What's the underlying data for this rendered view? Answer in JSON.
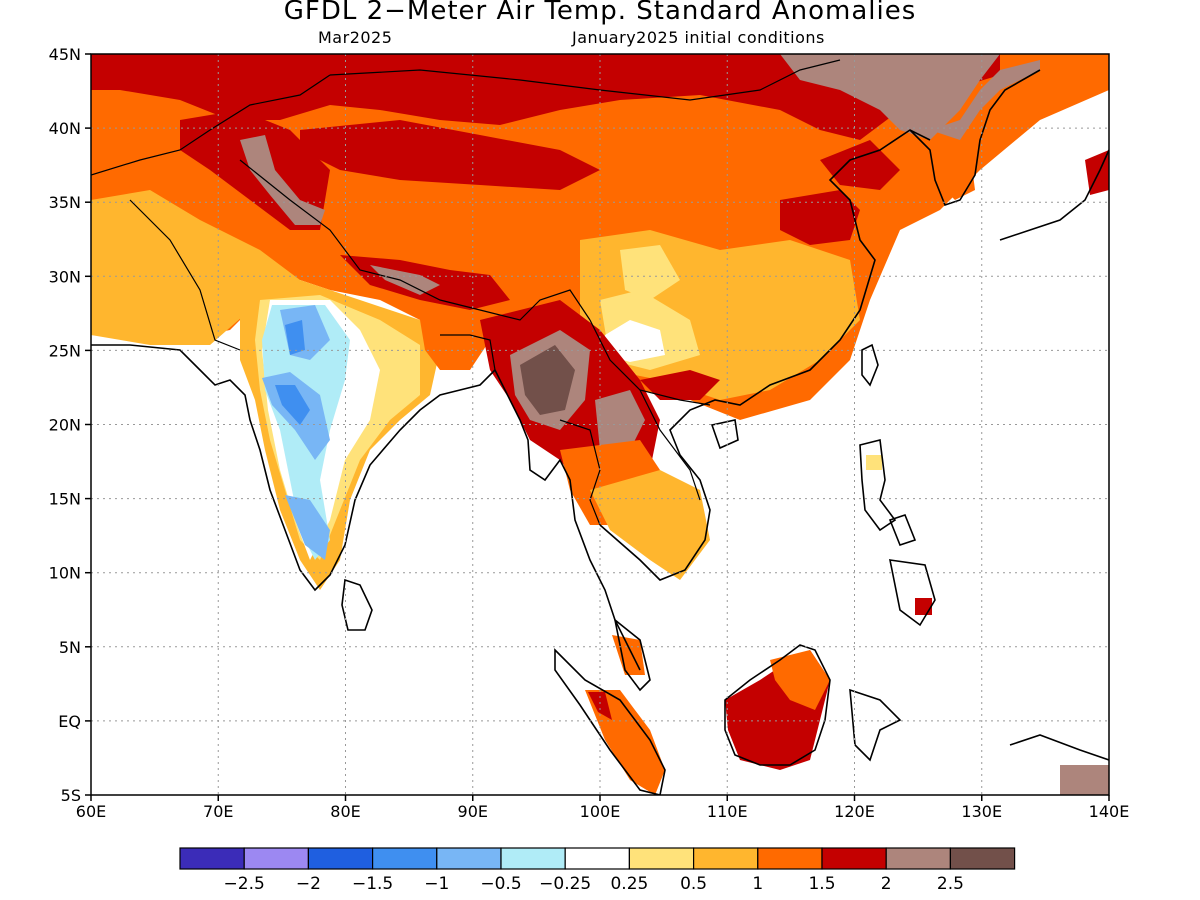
{
  "title": "GFDL 2−Meter Air Temp. Standard Anomalies",
  "subtitle_left": "Mar2025",
  "subtitle_right": "January2025 initial conditions",
  "chart_data": {
    "type": "heatmap",
    "variable": "2-meter air temperature standard anomaly",
    "lon_range": [
      60,
      140
    ],
    "lat_range": [
      -5,
      45
    ],
    "x_ticks": [
      "60E",
      "70E",
      "80E",
      "90E",
      "100E",
      "110E",
      "120E",
      "130E",
      "140E"
    ],
    "y_ticks": [
      "45N",
      "40N",
      "35N",
      "30N",
      "25N",
      "20N",
      "15N",
      "10N",
      "5N",
      "EQ",
      "5S"
    ],
    "grid": "dotted",
    "colorbar": {
      "position": "bottom",
      "colors": [
        "#3b2cb8",
        "#9c88f2",
        "#1f5fe0",
        "#3f8ff0",
        "#78b6f5",
        "#b0ecf7",
        "#ffffff",
        "#ffe27a",
        "#ffb62e",
        "#ff6a00",
        "#c40000",
        "#ad857c",
        "#72504a"
      ],
      "labels": [
        "−2.5",
        "−2",
        "−1.5",
        "−1",
        "−0.5",
        "−0.25",
        "0.25",
        "0.5",
        "1",
        "1.5",
        "2",
        "2.5"
      ]
    },
    "regions": [
      {
        "area": "Northern India (around 75-78E, 22-27N)",
        "anomaly_range": "-1 to -0.25"
      },
      {
        "area": "Central/Southern India west coast",
        "anomaly_range": "-1.5 to -0.25"
      },
      {
        "area": "Myanmar (around 95-97E, 20-24N)",
        "anomaly_range": ">2.5"
      },
      {
        "area": "Northern Thailand / Laos",
        "anomaly_range": "2 to 2.5"
      },
      {
        "area": "Borneo",
        "anomaly_range": "1.5 to 2"
      },
      {
        "area": "Mongolia / Northern China",
        "anomaly_range": "1.5 to 2.5"
      },
      {
        "area": "Tibetan Plateau / Himalaya",
        "anomaly_range": "1 to 2.5"
      },
      {
        "area": "Southern China",
        "anomaly_range": "0.25 to 1.5"
      }
    ]
  }
}
